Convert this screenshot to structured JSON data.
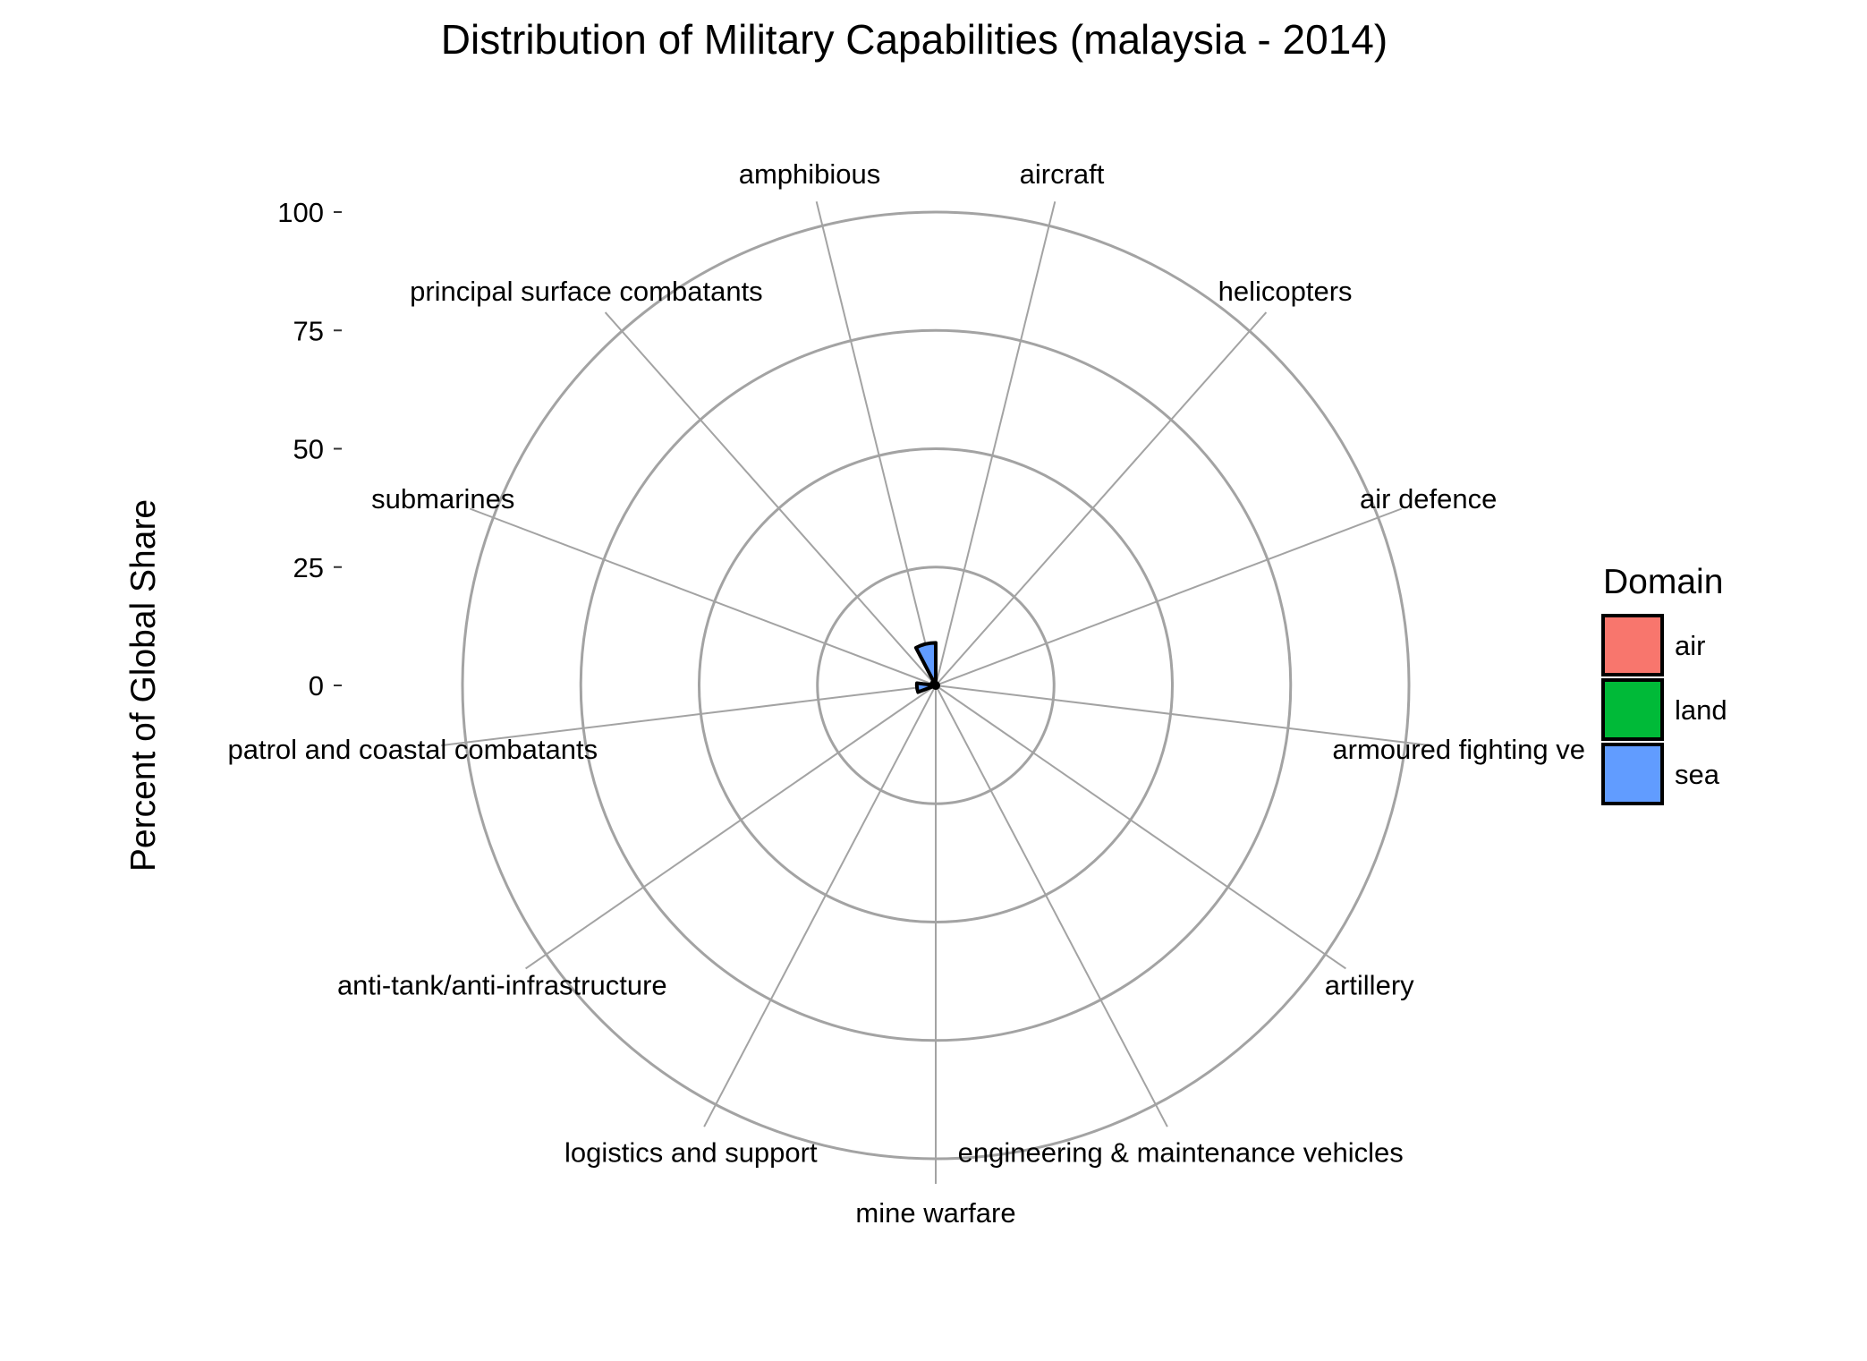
{
  "chart_data": {
    "type": "bar",
    "coord": "polar",
    "title": "Distribution of Military Capabilities (malaysia - 2014)",
    "xlabel": "",
    "ylabel": "Percent of Global Share",
    "ylim": [
      0,
      100
    ],
    "yticks": [
      "0",
      "25",
      "50",
      "75",
      "100"
    ],
    "grid": true,
    "legend_position": "right",
    "legend": {
      "title": "Domain",
      "entries": [
        {
          "label": "air",
          "color": "#F8766D"
        },
        {
          "label": "land",
          "color": "#00BA38"
        },
        {
          "label": "sea",
          "color": "#619CFF"
        }
      ]
    },
    "categories": [
      "aircraft",
      "helicopters",
      "air defence",
      "armoured fighting ve",
      "artillery",
      "engineering & maintenance vehicles",
      "mine warfare",
      "logistics and support",
      "anti-tank/anti-infrastructure",
      "patrol and coastal combatants",
      "submarines",
      "principal surface combatants",
      "amphibious"
    ],
    "domains": [
      "air",
      "air",
      "air",
      "land",
      "land",
      "land",
      "sea",
      "land",
      "land",
      "sea",
      "sea",
      "sea",
      "sea"
    ],
    "values": [
      0.3,
      0.2,
      0.3,
      0.3,
      0.3,
      0.2,
      0.4,
      0.3,
      0.3,
      4,
      0.5,
      1,
      9
    ]
  }
}
